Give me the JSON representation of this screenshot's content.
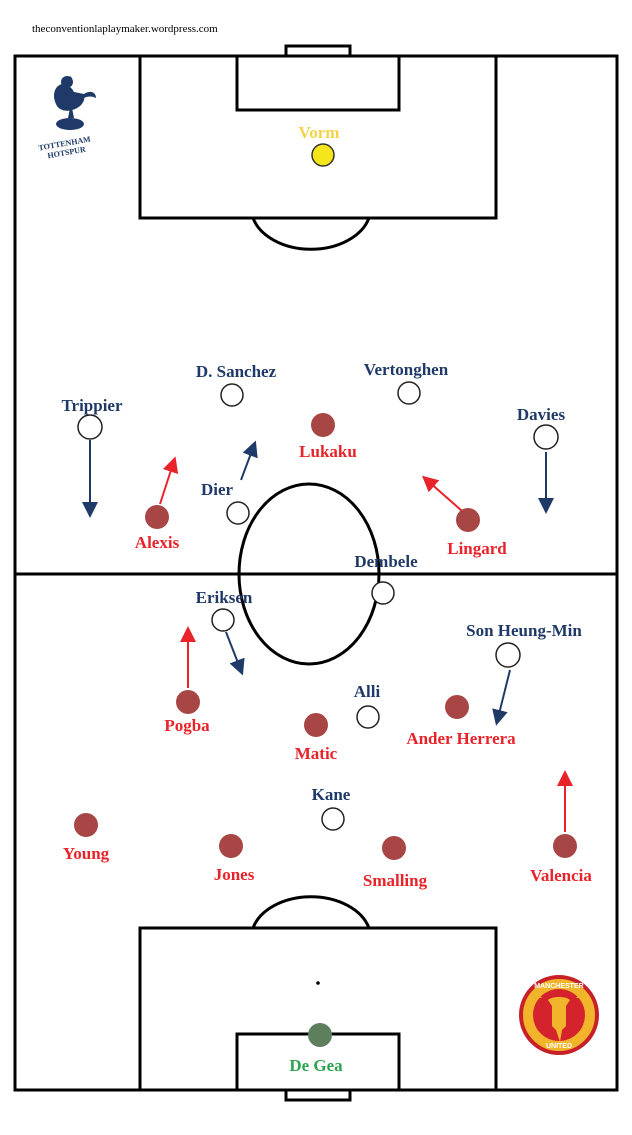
{
  "credit": "theconventionlaplaymaker.wordpress.com",
  "colors": {
    "spurs": "#1f3a68",
    "united": "#e8232a",
    "united_marker": "#a84646",
    "spurs_keeper": "#f4d34a",
    "united_keeper": "#2ea44f",
    "united_keeper_marker": "#5d7f5d"
  },
  "badges": {
    "spurs": {
      "text_line1": "TOTTENHAM",
      "text_line2": "HOTSPUR"
    },
    "united": {
      "text_line1": "MANCHESTER",
      "text_line2": "UNITED"
    }
  },
  "spurs": [
    {
      "name": "Vorm",
      "role": "goalkeeper"
    },
    {
      "name": "D. Sanchez"
    },
    {
      "name": "Vertonghen"
    },
    {
      "name": "Trippier"
    },
    {
      "name": "Davies"
    },
    {
      "name": "Dier"
    },
    {
      "name": "Dembele"
    },
    {
      "name": "Eriksen"
    },
    {
      "name": "Son Heung-Min"
    },
    {
      "name": "Alli"
    },
    {
      "name": "Kane"
    }
  ],
  "united": [
    {
      "name": "Lukaku"
    },
    {
      "name": "Alexis"
    },
    {
      "name": "Lingard"
    },
    {
      "name": "Pogba"
    },
    {
      "name": "Matic"
    },
    {
      "name": "Ander Herrera"
    },
    {
      "name": "Young"
    },
    {
      "name": "Jones"
    },
    {
      "name": "Smalling"
    },
    {
      "name": "Valencia"
    },
    {
      "name": "De Gea",
      "role": "goalkeeper"
    }
  ]
}
